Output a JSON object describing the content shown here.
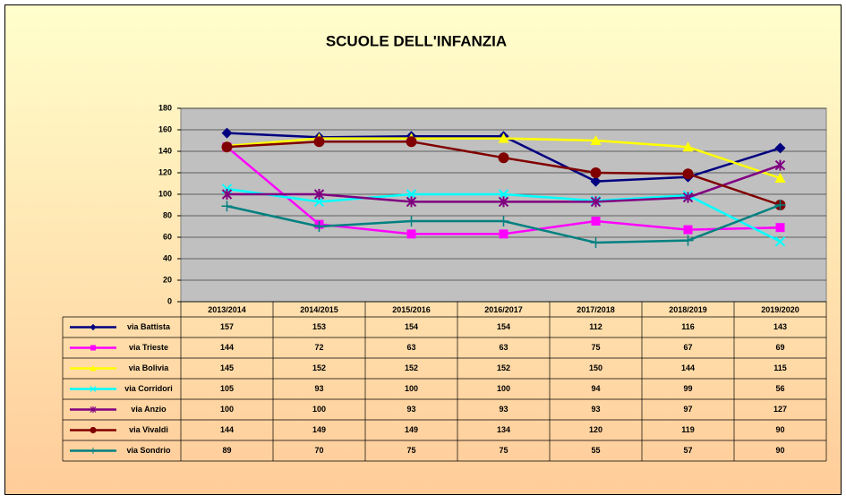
{
  "chart_data": {
    "type": "line",
    "title": "SCUOLE DELL'INFANZIA",
    "categories": [
      "2013/2014",
      "2014/2015",
      "2015/2016",
      "2016/2017",
      "2017/2018",
      "2018/2019",
      "2019/2020"
    ],
    "series": [
      {
        "name": "via Battista",
        "color": "#000080",
        "marker": "diamond",
        "values": [
          157,
          153,
          154,
          154,
          112,
          116,
          143
        ]
      },
      {
        "name": "via Trieste",
        "color": "#ff00ff",
        "marker": "square",
        "values": [
          144,
          72,
          63,
          63,
          75,
          67,
          69
        ]
      },
      {
        "name": "via Bolivia",
        "color": "#ffff00",
        "marker": "triangle",
        "values": [
          145,
          152,
          152,
          152,
          150,
          144,
          115
        ]
      },
      {
        "name": "via Corridori",
        "color": "#00ffff",
        "marker": "x",
        "values": [
          105,
          93,
          100,
          100,
          94,
          99,
          56
        ]
      },
      {
        "name": "via Anzio",
        "color": "#800080",
        "marker": "star",
        "values": [
          100,
          100,
          93,
          93,
          93,
          97,
          127
        ]
      },
      {
        "name": "via Vivaldi",
        "color": "#800000",
        "marker": "circle",
        "values": [
          144,
          149,
          149,
          134,
          120,
          119,
          90
        ]
      },
      {
        "name": "via Sondrio",
        "color": "#008080",
        "marker": "plus",
        "values": [
          89,
          70,
          75,
          75,
          55,
          57,
          90
        ]
      }
    ],
    "ylim": [
      0,
      180
    ],
    "yticks": [
      0,
      20,
      40,
      60,
      80,
      100,
      120,
      140,
      160,
      180
    ],
    "grid": true,
    "data_table": true
  }
}
